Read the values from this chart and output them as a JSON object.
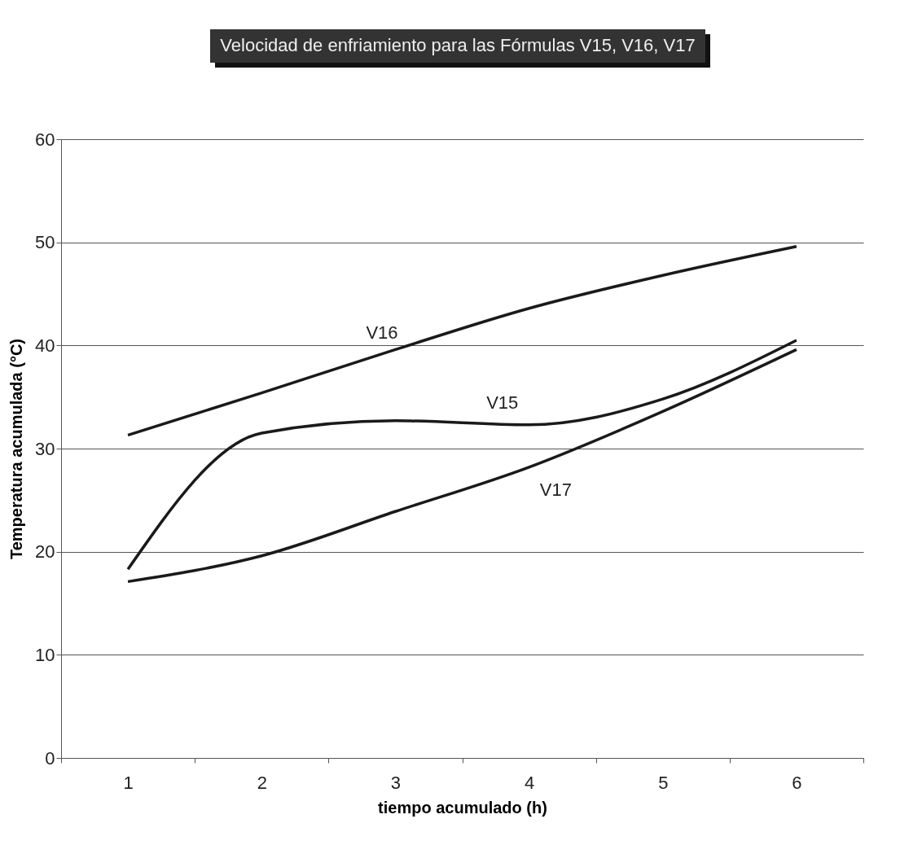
{
  "chart_data": {
    "type": "line",
    "title": "Velocidad de enfriamiento para las Fórmulas V15, V16, V17",
    "xlabel": "tiempo acumulado (h)",
    "ylabel": "Temperatura acumulada (°C)",
    "categories": [
      "1",
      "2",
      "3",
      "4",
      "5",
      "6"
    ],
    "series": [
      {
        "name": "V15",
        "color": "#1a1a1a",
        "values": [
          18.3,
          31.5,
          32.7,
          32.3,
          34.8,
          40.5
        ]
      },
      {
        "name": "V16",
        "color": "#1a1a1a",
        "values": [
          31.3,
          35.4,
          39.6,
          43.6,
          46.8,
          49.6
        ]
      },
      {
        "name": "V17",
        "color": "#1a1a1a",
        "values": [
          17.1,
          19.6,
          23.9,
          28.2,
          33.6,
          39.6
        ]
      }
    ],
    "ylim": [
      0,
      60
    ],
    "yticks": [
      0,
      10,
      20,
      30,
      40,
      50,
      60
    ],
    "grid": "y",
    "legend": false,
    "marker": "none",
    "line_style": "solid"
  }
}
